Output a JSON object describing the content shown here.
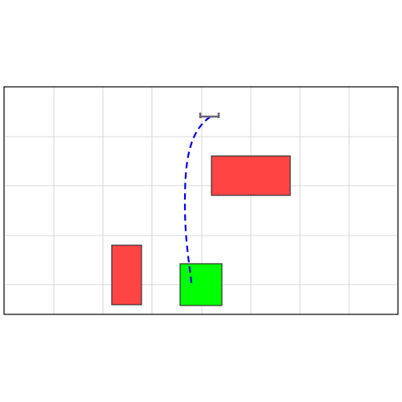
{
  "scene": {
    "grid": true,
    "colors": {
      "background": "#ffffff",
      "frame": "#000000",
      "grid": "#cccccc",
      "obstacle_fill": "#ff4444",
      "obstacle_stroke": "#333333",
      "goal_fill": "#00ff00",
      "goal_stroke": "#333333",
      "path": "#0000ee",
      "gripper": "#666677"
    },
    "obstacles": [
      {
        "name": "obstacle-large-right"
      },
      {
        "name": "obstacle-tall-left"
      }
    ],
    "goal": {
      "name": "goal-region"
    },
    "path": {
      "style": "dashed"
    },
    "gripper": {
      "icon": "gripper-icon"
    }
  }
}
